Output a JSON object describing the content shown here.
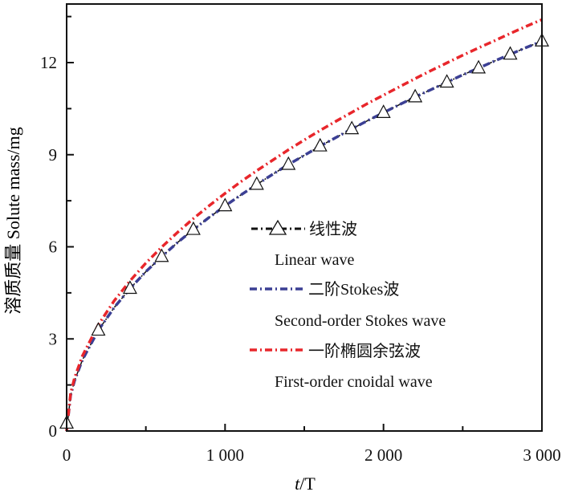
{
  "chart_data": {
    "type": "line",
    "title": "",
    "xlabel_italic_t": "t",
    "xlabel_rest": "/T",
    "xlabel": "t/T",
    "ylabel": "溶质质量 Solute mass/mg",
    "xlim": [
      0,
      3000
    ],
    "ylim": [
      0,
      14
    ],
    "xticks": [
      0,
      1000,
      2000,
      3000
    ],
    "xtick_labels": [
      "0",
      "1 000",
      "2 000",
      "3 000"
    ],
    "yticks": [
      0,
      3,
      6,
      9,
      12
    ],
    "ytick_labels": [
      "0",
      "3",
      "6",
      "9",
      "12"
    ],
    "grid": false,
    "legend_position": "center-right",
    "x": [
      0,
      25,
      50,
      100,
      200,
      300,
      400,
      500,
      600,
      700,
      800,
      900,
      1000,
      1100,
      1200,
      1300,
      1400,
      1500,
      1600,
      1700,
      1800,
      1900,
      2000,
      2100,
      2200,
      2300,
      2400,
      2500,
      2600,
      2700,
      2800,
      2900,
      3000
    ],
    "series": [
      {
        "name": "线性波",
        "name_en": "Linear wave",
        "color": "#111111",
        "marker": "triangle",
        "values": [
          0.25,
          1.16,
          1.64,
          2.32,
          3.28,
          4.02,
          4.64,
          5.19,
          5.68,
          6.14,
          6.56,
          6.96,
          7.33,
          7.69,
          8.03,
          8.36,
          8.68,
          8.98,
          9.28,
          9.56,
          9.84,
          10.11,
          10.37,
          10.63,
          10.88,
          11.12,
          11.36,
          11.6,
          11.82,
          12.05,
          12.27,
          12.49,
          12.7
        ],
        "marker_x": [
          0,
          200,
          400,
          600,
          800,
          1000,
          1200,
          1400,
          1600,
          1800,
          2000,
          2200,
          2400,
          2600,
          2800,
          3000
        ]
      },
      {
        "name": "二阶Stokes波",
        "name_en": "Second-order Stokes wave",
        "color": "#3b3f94",
        "values": [
          0,
          1.16,
          1.64,
          2.32,
          3.28,
          4.02,
          4.64,
          5.19,
          5.68,
          6.14,
          6.56,
          6.96,
          7.33,
          7.69,
          8.03,
          8.36,
          8.68,
          8.98,
          9.28,
          9.56,
          9.84,
          10.11,
          10.37,
          10.63,
          10.88,
          11.12,
          11.36,
          11.6,
          11.82,
          12.05,
          12.27,
          12.49,
          12.7
        ]
      },
      {
        "name": "一阶椭圆余弦波",
        "name_en": "First-order cnoidal wave",
        "color": "#e8262b",
        "values": [
          0,
          1.22,
          1.73,
          2.45,
          3.46,
          4.24,
          4.89,
          5.47,
          5.99,
          6.47,
          6.92,
          7.34,
          7.74,
          8.12,
          8.48,
          8.82,
          9.16,
          9.48,
          9.79,
          10.09,
          10.38,
          10.67,
          10.94,
          11.21,
          11.48,
          11.74,
          11.99,
          12.24,
          12.48,
          12.71,
          12.95,
          13.18,
          13.4
        ]
      }
    ]
  }
}
